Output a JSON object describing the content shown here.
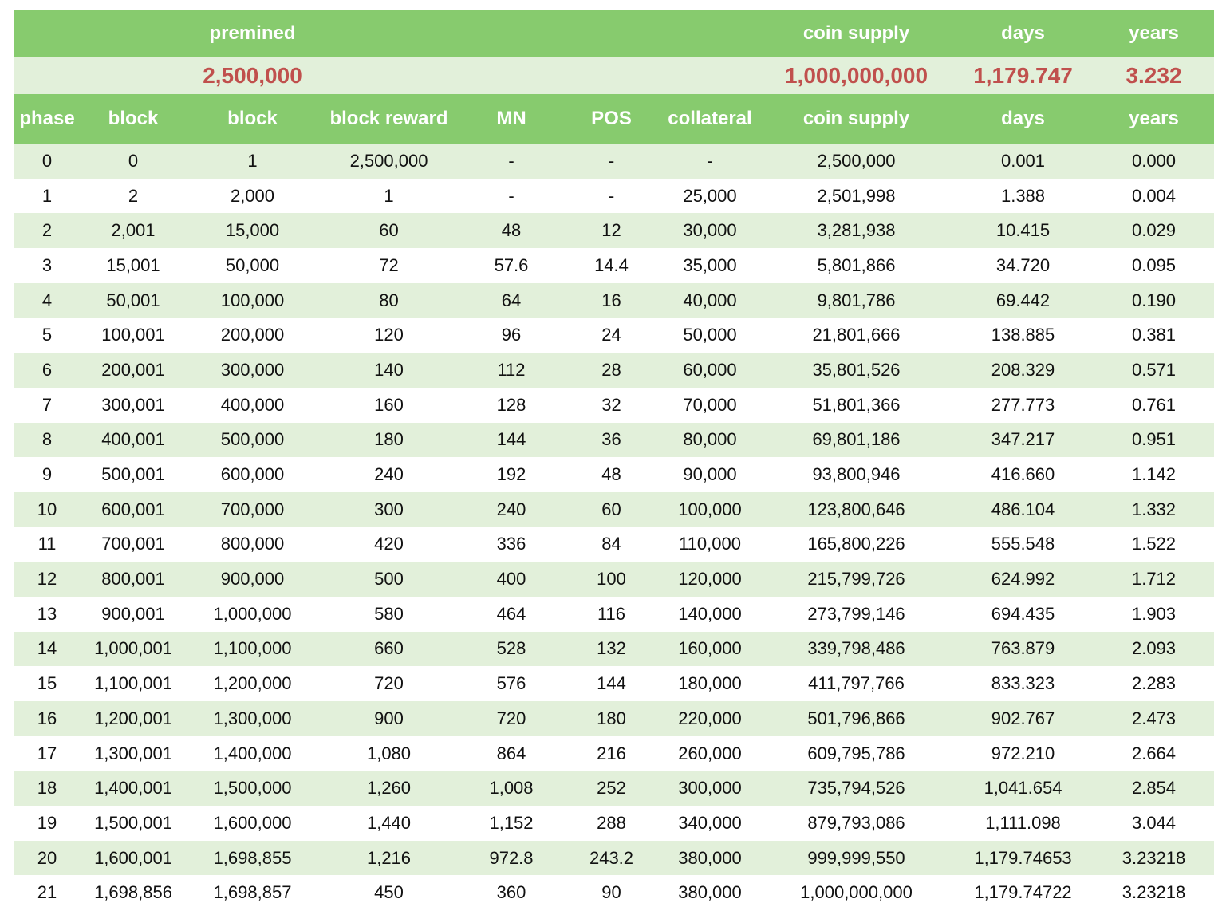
{
  "summary": {
    "labels": {
      "premined": "premined",
      "coin_supply": "coin supply",
      "days": "days",
      "years": "years"
    },
    "values": {
      "premined": "2,500,000",
      "coin_supply": "1,000,000,000",
      "days": "1,179.747",
      "years": "3.232"
    }
  },
  "columns": [
    "phase",
    "block",
    "block",
    "block reward",
    "MN",
    "POS",
    "collateral",
    "coin supply",
    "days",
    "years"
  ],
  "rows": [
    [
      "0",
      "0",
      "1",
      "2,500,000",
      "-",
      "-",
      "-",
      "2,500,000",
      "0.001",
      "0.000"
    ],
    [
      "1",
      "2",
      "2,000",
      "1",
      "-",
      "-",
      "25,000",
      "2,501,998",
      "1.388",
      "0.004"
    ],
    [
      "2",
      "2,001",
      "15,000",
      "60",
      "48",
      "12",
      "30,000",
      "3,281,938",
      "10.415",
      "0.029"
    ],
    [
      "3",
      "15,001",
      "50,000",
      "72",
      "57.6",
      "14.4",
      "35,000",
      "5,801,866",
      "34.720",
      "0.095"
    ],
    [
      "4",
      "50,001",
      "100,000",
      "80",
      "64",
      "16",
      "40,000",
      "9,801,786",
      "69.442",
      "0.190"
    ],
    [
      "5",
      "100,001",
      "200,000",
      "120",
      "96",
      "24",
      "50,000",
      "21,801,666",
      "138.885",
      "0.381"
    ],
    [
      "6",
      "200,001",
      "300,000",
      "140",
      "112",
      "28",
      "60,000",
      "35,801,526",
      "208.329",
      "0.571"
    ],
    [
      "7",
      "300,001",
      "400,000",
      "160",
      "128",
      "32",
      "70,000",
      "51,801,366",
      "277.773",
      "0.761"
    ],
    [
      "8",
      "400,001",
      "500,000",
      "180",
      "144",
      "36",
      "80,000",
      "69,801,186",
      "347.217",
      "0.951"
    ],
    [
      "9",
      "500,001",
      "600,000",
      "240",
      "192",
      "48",
      "90,000",
      "93,800,946",
      "416.660",
      "1.142"
    ],
    [
      "10",
      "600,001",
      "700,000",
      "300",
      "240",
      "60",
      "100,000",
      "123,800,646",
      "486.104",
      "1.332"
    ],
    [
      "11",
      "700,001",
      "800,000",
      "420",
      "336",
      "84",
      "110,000",
      "165,800,226",
      "555.548",
      "1.522"
    ],
    [
      "12",
      "800,001",
      "900,000",
      "500",
      "400",
      "100",
      "120,000",
      "215,799,726",
      "624.992",
      "1.712"
    ],
    [
      "13",
      "900,001",
      "1,000,000",
      "580",
      "464",
      "116",
      "140,000",
      "273,799,146",
      "694.435",
      "1.903"
    ],
    [
      "14",
      "1,000,001",
      "1,100,000",
      "660",
      "528",
      "132",
      "160,000",
      "339,798,486",
      "763.879",
      "2.093"
    ],
    [
      "15",
      "1,100,001",
      "1,200,000",
      "720",
      "576",
      "144",
      "180,000",
      "411,797,766",
      "833.323",
      "2.283"
    ],
    [
      "16",
      "1,200,001",
      "1,300,000",
      "900",
      "720",
      "180",
      "220,000",
      "501,796,866",
      "902.767",
      "2.473"
    ],
    [
      "17",
      "1,300,001",
      "1,400,000",
      "1,080",
      "864",
      "216",
      "260,000",
      "609,795,786",
      "972.210",
      "2.664"
    ],
    [
      "18",
      "1,400,001",
      "1,500,000",
      "1,260",
      "1,008",
      "252",
      "300,000",
      "735,794,526",
      "1,041.654",
      "2.854"
    ],
    [
      "19",
      "1,500,001",
      "1,600,000",
      "1,440",
      "1,152",
      "288",
      "340,000",
      "879,793,086",
      "1,111.098",
      "3.044"
    ],
    [
      "20",
      "1,600,001",
      "1,698,855",
      "1,216",
      "972.8",
      "243.2",
      "380,000",
      "999,999,550",
      "1,179.74653",
      "3.23218"
    ],
    [
      "21",
      "1,698,856",
      "1,698,857",
      "450",
      "360",
      "90",
      "380,000",
      "1,000,000,000",
      "1,179.74722",
      "3.23218"
    ]
  ],
  "colors": {
    "header_green": "#87cb6e",
    "band_light_green": "#e2f0da",
    "summary_value_red": "#c0504d",
    "header_text": "#ffffff"
  }
}
